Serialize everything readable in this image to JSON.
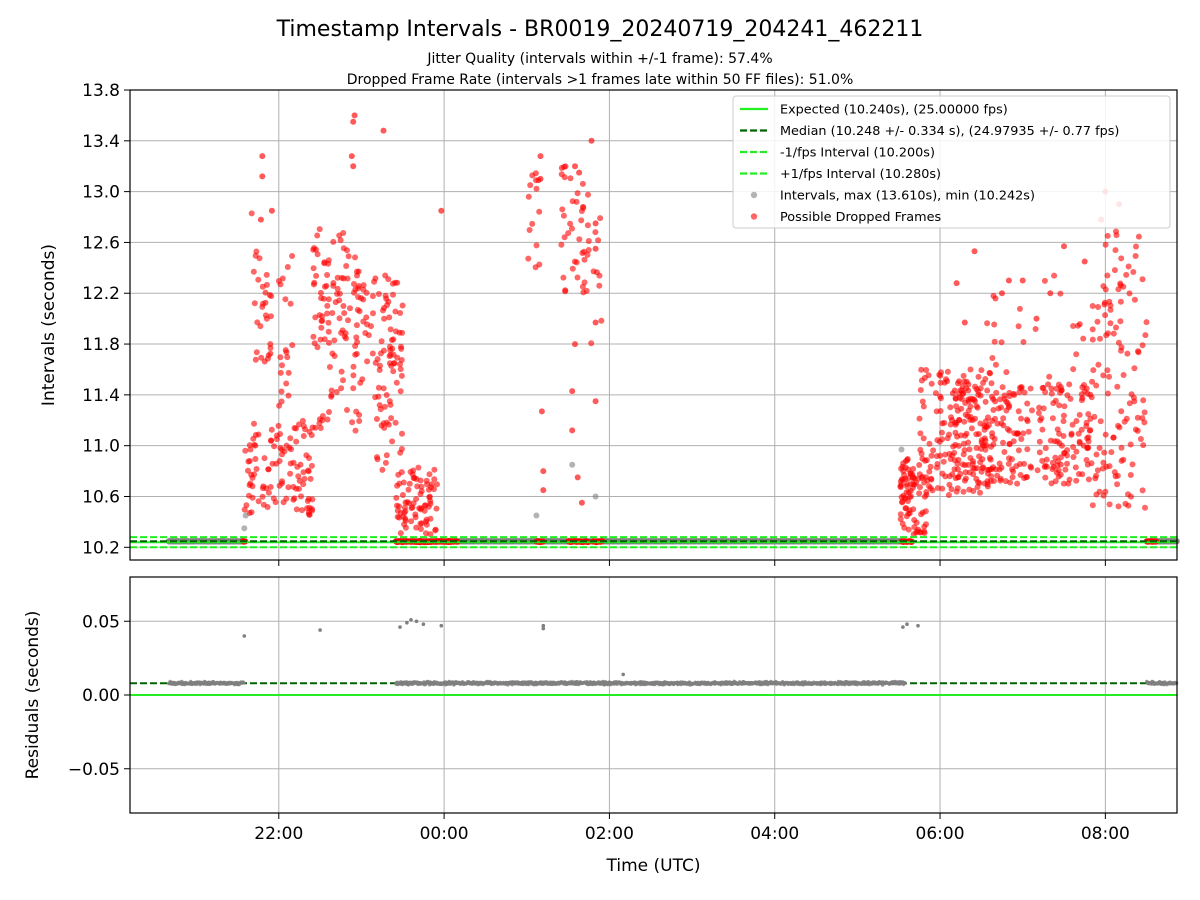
{
  "figure": {
    "title": "Timestamp Intervals - BR0019_20240719_204241_462211",
    "subtitle1": "Jitter Quality (intervals within +/-1 frame): 57.4%",
    "subtitle2": "Dropped Frame Rate (intervals >1 frames late within 50 FF files): 51.0%"
  },
  "colors": {
    "expected": "#22ee22",
    "median": "#006400",
    "fps_band": "#22ee22",
    "intervals": "#808080",
    "dropped": "#ff0000",
    "grid": "#b0b0b0",
    "axis": "#000000"
  },
  "chart_data": [
    {
      "type": "scatter",
      "ylabel": "Intervals (seconds)",
      "xlabel": "",
      "xlim": [
        "20:12",
        "08:52"
      ],
      "ylim": [
        10.1,
        13.8
      ],
      "yticks": [
        "10.2",
        "10.6",
        "11.0",
        "11.4",
        "11.8",
        "12.2",
        "12.6",
        "13.0",
        "13.4",
        "13.8"
      ],
      "grid": true,
      "legend_position": "top-right",
      "legend": [
        "Expected (10.240s), (25.00000 fps)",
        "Median (10.248 +/- 0.334 s), (24.97935 +/- 0.77 fps)",
        "-1/fps Interval (10.200s)",
        "+1/fps Interval (10.280s)",
        "Intervals, max (13.610s), min (10.242s)",
        "Possible Dropped Frames"
      ],
      "reference_lines": {
        "expected": 10.24,
        "median": 10.248,
        "minus_1fps": 10.2,
        "plus_1fps": 10.28
      },
      "baseline_spans": [
        [
          "20:40",
          "21:35"
        ],
        [
          "23:25",
          "05:35"
        ],
        [
          "08:30",
          "08:52"
        ]
      ],
      "dropped_clusters": [
        {
          "start": "21:35",
          "end": "22:25",
          "ymin": 10.45,
          "ymax": 11.2,
          "count": 110
        },
        {
          "start": "21:40",
          "end": "21:55",
          "ymin": 11.6,
          "ymax": 12.85,
          "count": 30
        },
        {
          "start": "22:00",
          "end": "22:10",
          "ymin": 11.3,
          "ymax": 12.5,
          "count": 20
        },
        {
          "start": "22:25",
          "end": "22:50",
          "ymin": 11.8,
          "ymax": 12.8,
          "count": 45
        },
        {
          "start": "22:25",
          "end": "23:00",
          "ymin": 11.1,
          "ymax": 12.5,
          "count": 60
        },
        {
          "start": "22:55",
          "end": "23:30",
          "ymin": 11.5,
          "ymax": 12.5,
          "count": 70
        },
        {
          "start": "23:10",
          "end": "23:30",
          "ymin": 10.8,
          "ymax": 11.7,
          "count": 35
        },
        {
          "start": "23:25",
          "end": "23:55",
          "ymin": 10.3,
          "ymax": 10.85,
          "count": 80
        },
        {
          "start": "01:00",
          "end": "01:10",
          "ymin": 12.4,
          "ymax": 13.2,
          "count": 14
        },
        {
          "start": "01:25",
          "end": "01:45",
          "ymin": 12.2,
          "ymax": 13.2,
          "count": 40
        },
        {
          "start": "01:45",
          "end": "01:55",
          "ymin": 11.8,
          "ymax": 12.8,
          "count": 10
        },
        {
          "start": "05:30",
          "end": "05:50",
          "ymin": 10.3,
          "ymax": 10.9,
          "count": 80
        },
        {
          "start": "05:45",
          "end": "06:40",
          "ymin": 10.6,
          "ymax": 11.6,
          "count": 160
        },
        {
          "start": "06:10",
          "end": "07:50",
          "ymin": 10.7,
          "ymax": 11.5,
          "count": 260
        },
        {
          "start": "06:20",
          "end": "07:45",
          "ymin": 11.5,
          "ymax": 12.4,
          "count": 24
        },
        {
          "start": "07:50",
          "end": "08:30",
          "ymin": 10.5,
          "ymax": 12.7,
          "count": 120
        }
      ],
      "dropped_points": [
        [
          "22:55",
          13.6
        ],
        [
          "22:54",
          13.55
        ],
        [
          "23:16",
          13.48
        ],
        [
          "22:53",
          13.28
        ],
        [
          "22:54",
          13.2
        ],
        [
          "23:58",
          12.85
        ],
        [
          "21:55",
          12.85
        ],
        [
          "21:48",
          13.28
        ],
        [
          "21:48",
          13.12
        ],
        [
          "21:47",
          12.78
        ],
        [
          "01:10",
          13.28
        ],
        [
          "01:10",
          13.1
        ],
        [
          "01:35",
          13.2
        ],
        [
          "01:38",
          13.15
        ],
        [
          "01:47",
          13.4
        ],
        [
          "01:50",
          12.75
        ],
        [
          "01:50",
          12.55
        ],
        [
          "01:50",
          11.97
        ],
        [
          "01:50",
          11.35
        ],
        [
          "01:35",
          11.8
        ],
        [
          "01:33",
          11.43
        ],
        [
          "01:33",
          11.12
        ],
        [
          "01:11",
          11.27
        ],
        [
          "01:12",
          10.8
        ],
        [
          "01:12",
          10.65
        ],
        [
          "01:37",
          10.75
        ],
        [
          "01:40",
          10.55
        ],
        [
          "07:00",
          12.3
        ],
        [
          "07:30",
          12.57
        ],
        [
          "08:00",
          13.0
        ],
        [
          "08:10",
          12.9
        ],
        [
          "07:57",
          12.78
        ],
        [
          "06:18",
          11.97
        ],
        [
          "06:12",
          12.28
        ],
        [
          "06:45",
          12.2
        ],
        [
          "06:50",
          12.3
        ],
        [
          "07:10",
          12.0
        ],
        [
          "07:20",
          12.2
        ],
        [
          "06:25",
          12.53
        ],
        [
          "07:45",
          12.45
        ]
      ],
      "gray_outliers": [
        [
          "21:35",
          10.35
        ],
        [
          "21:36",
          10.45
        ],
        [
          "01:07",
          10.45
        ],
        [
          "01:33",
          10.85
        ],
        [
          "01:50",
          10.6
        ],
        [
          "05:32",
          10.97
        ]
      ],
      "dropped_baseline_runs": [
        [
          "21:34",
          "21:36"
        ],
        [
          "23:25",
          "24:10"
        ],
        [
          "01:07",
          "01:12"
        ],
        [
          "01:30",
          "01:45"
        ],
        [
          "01:48",
          "01:55"
        ],
        [
          "05:32",
          "05:40"
        ],
        [
          "08:30",
          "08:37"
        ]
      ]
    },
    {
      "type": "scatter",
      "ylabel": "Residuals (seconds)",
      "xlabel": "Time (UTC)",
      "xlim": [
        "20:12",
        "08:52"
      ],
      "ylim": [
        -0.08,
        0.08
      ],
      "yticks": [
        "−0.05",
        "0.00",
        "0.05"
      ],
      "xticks": [
        "22:00",
        "00:00",
        "02:00",
        "04:00",
        "06:00",
        "08:00"
      ],
      "grid": true,
      "reference_lines": {
        "expected": 0.0,
        "median": 0.008
      },
      "residual_spans": [
        [
          "20:40",
          "21:35"
        ],
        [
          "23:25",
          "05:35"
        ],
        [
          "08:30",
          "08:52"
        ]
      ],
      "residual_level": 0.008,
      "residual_spread": 0.0015,
      "outliers": [
        [
          "21:35",
          0.04
        ],
        [
          "22:30",
          0.044
        ],
        [
          "23:28",
          0.046
        ],
        [
          "23:33",
          0.049
        ],
        [
          "23:36",
          0.051
        ],
        [
          "23:40",
          0.05
        ],
        [
          "23:45",
          0.048
        ],
        [
          "23:58",
          0.047
        ],
        [
          "01:12",
          0.047
        ],
        [
          "01:12",
          0.045
        ],
        [
          "05:33",
          0.046
        ],
        [
          "05:36",
          0.048
        ],
        [
          "05:44",
          0.047
        ],
        [
          "02:10",
          0.014
        ]
      ]
    }
  ]
}
